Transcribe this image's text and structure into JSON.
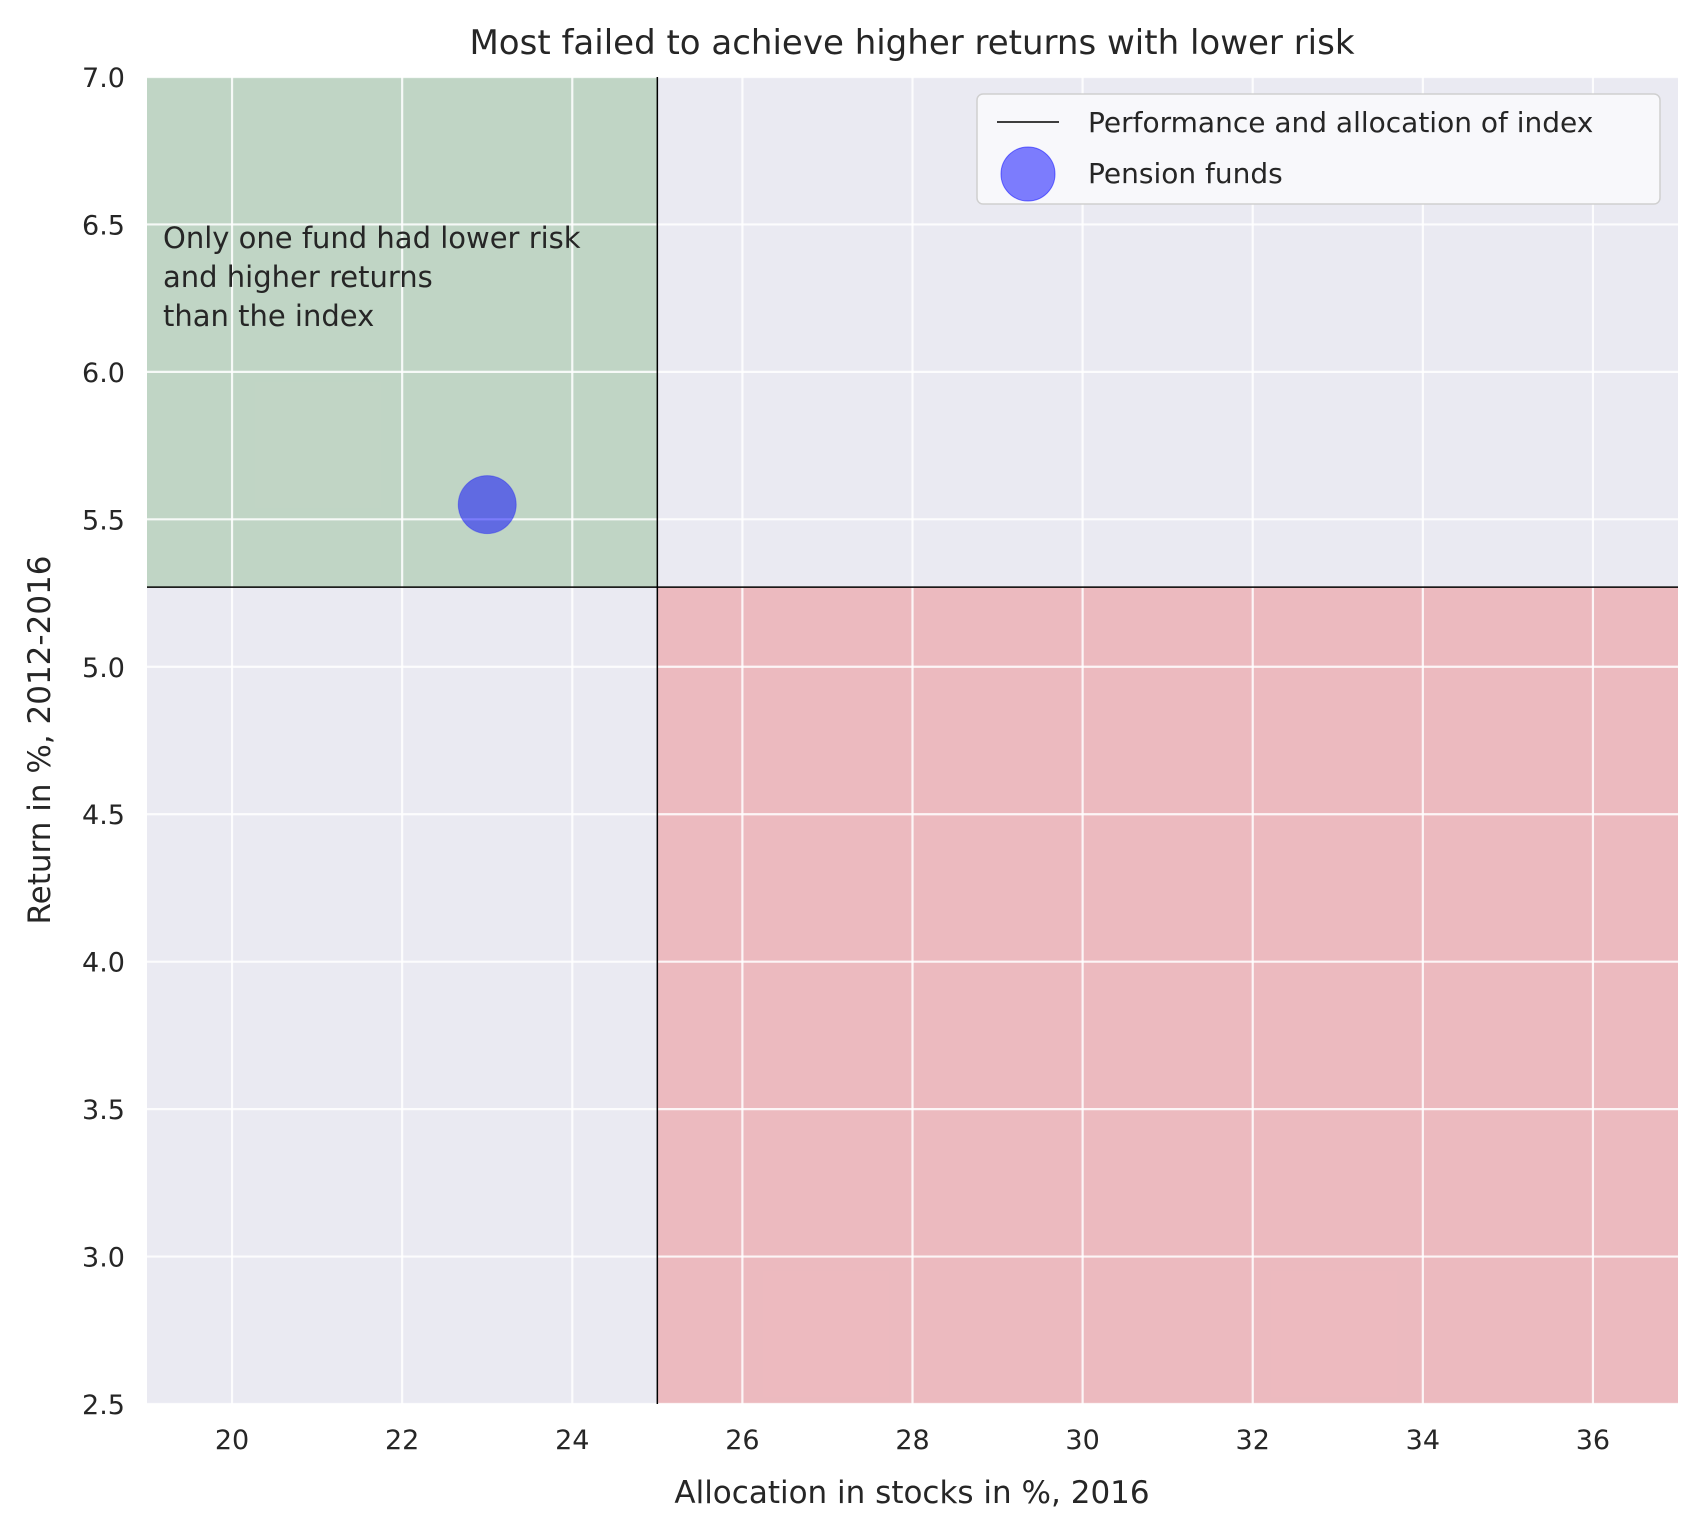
{
  "chart_data": {
    "type": "scatter",
    "title": "Most failed to achieve higher returns with lower risk",
    "xlabel": "Allocation in stocks in %, 2016",
    "ylabel": "Return in %, 2012-2016",
    "xlim": [
      19,
      37
    ],
    "ylim": [
      2.5,
      7.0
    ],
    "x_ticks": [
      "20",
      "22",
      "24",
      "26",
      "28",
      "30",
      "32",
      "34",
      "36"
    ],
    "x_tick_values": [
      20,
      22,
      24,
      26,
      28,
      30,
      32,
      34,
      36
    ],
    "y_ticks": [
      "2.5",
      "3.0",
      "3.5",
      "4.0",
      "4.5",
      "5.0",
      "5.5",
      "6.0",
      "6.5",
      "7.0"
    ],
    "y_tick_values": [
      2.5,
      3.0,
      3.5,
      4.0,
      4.5,
      5.0,
      5.5,
      6.0,
      6.5,
      7.0
    ],
    "grid": true,
    "legend_position": "top-right",
    "index": {
      "name": "Performance and allocation of index",
      "allocation": 25.0,
      "return": 5.27
    },
    "series": [
      {
        "name": "Pension funds",
        "points": [
          {
            "x": 23.0,
            "y": 5.55
          }
        ]
      }
    ],
    "regions": [
      {
        "name": "lower-risk-higher-return",
        "x_range": [
          19,
          25.0
        ],
        "y_range": [
          5.27,
          7.0
        ],
        "color": "#8fbc8f"
      },
      {
        "name": "higher-risk-lower-return",
        "x_range": [
          25.0,
          37
        ],
        "y_range": [
          2.5,
          5.27
        ],
        "color": "#f08080"
      }
    ],
    "annotation": {
      "lines": [
        "Only one fund had lower risk",
        "and higher returns",
        "than the index"
      ]
    },
    "colors": {
      "background": "#eaeaf2",
      "grid": "#ffffff",
      "index_line": "#000000",
      "point_fill": "#0000ff",
      "point_alpha": 0.5,
      "green_region": "#8fbc8f",
      "red_region": "#f08080"
    }
  }
}
